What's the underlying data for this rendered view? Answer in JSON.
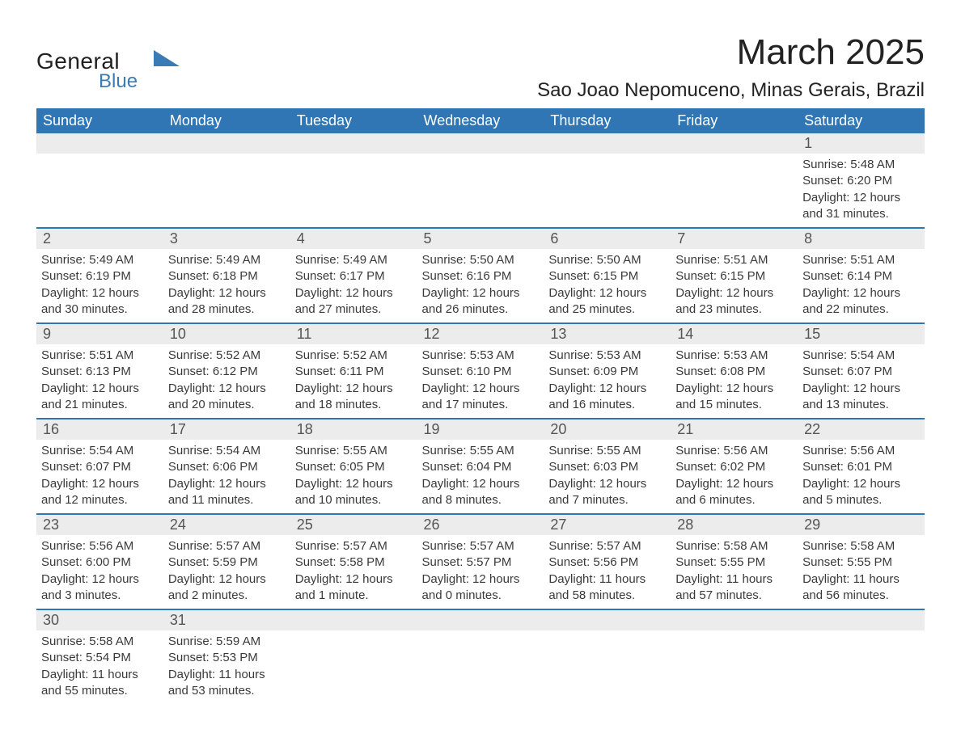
{
  "logo": {
    "main": "General",
    "sub": "Blue"
  },
  "title": "March 2025",
  "location": "Sao Joao Nepomuceno, Minas Gerais, Brazil",
  "day_headers": [
    "Sunday",
    "Monday",
    "Tuesday",
    "Wednesday",
    "Thursday",
    "Friday",
    "Saturday"
  ],
  "colors": {
    "header_bg": "#3076b5",
    "header_text": "#ffffff",
    "day_num_bg": "#ececec",
    "day_num_text": "#555555",
    "body_text": "#3a3a3a",
    "row_border": "#3076b5",
    "logo_accent": "#3b7bb5"
  },
  "typography": {
    "month_title_fontsize": 44,
    "location_fontsize": 24,
    "day_header_fontsize": 18,
    "day_num_fontsize": 18,
    "cell_fontsize": 15
  },
  "weeks": [
    [
      null,
      null,
      null,
      null,
      null,
      null,
      {
        "num": "1",
        "sunrise": "Sunrise: 5:48 AM",
        "sunset": "Sunset: 6:20 PM",
        "daylight1": "Daylight: 12 hours",
        "daylight2": "and 31 minutes."
      }
    ],
    [
      {
        "num": "2",
        "sunrise": "Sunrise: 5:49 AM",
        "sunset": "Sunset: 6:19 PM",
        "daylight1": "Daylight: 12 hours",
        "daylight2": "and 30 minutes."
      },
      {
        "num": "3",
        "sunrise": "Sunrise: 5:49 AM",
        "sunset": "Sunset: 6:18 PM",
        "daylight1": "Daylight: 12 hours",
        "daylight2": "and 28 minutes."
      },
      {
        "num": "4",
        "sunrise": "Sunrise: 5:49 AM",
        "sunset": "Sunset: 6:17 PM",
        "daylight1": "Daylight: 12 hours",
        "daylight2": "and 27 minutes."
      },
      {
        "num": "5",
        "sunrise": "Sunrise: 5:50 AM",
        "sunset": "Sunset: 6:16 PM",
        "daylight1": "Daylight: 12 hours",
        "daylight2": "and 26 minutes."
      },
      {
        "num": "6",
        "sunrise": "Sunrise: 5:50 AM",
        "sunset": "Sunset: 6:15 PM",
        "daylight1": "Daylight: 12 hours",
        "daylight2": "and 25 minutes."
      },
      {
        "num": "7",
        "sunrise": "Sunrise: 5:51 AM",
        "sunset": "Sunset: 6:15 PM",
        "daylight1": "Daylight: 12 hours",
        "daylight2": "and 23 minutes."
      },
      {
        "num": "8",
        "sunrise": "Sunrise: 5:51 AM",
        "sunset": "Sunset: 6:14 PM",
        "daylight1": "Daylight: 12 hours",
        "daylight2": "and 22 minutes."
      }
    ],
    [
      {
        "num": "9",
        "sunrise": "Sunrise: 5:51 AM",
        "sunset": "Sunset: 6:13 PM",
        "daylight1": "Daylight: 12 hours",
        "daylight2": "and 21 minutes."
      },
      {
        "num": "10",
        "sunrise": "Sunrise: 5:52 AM",
        "sunset": "Sunset: 6:12 PM",
        "daylight1": "Daylight: 12 hours",
        "daylight2": "and 20 minutes."
      },
      {
        "num": "11",
        "sunrise": "Sunrise: 5:52 AM",
        "sunset": "Sunset: 6:11 PM",
        "daylight1": "Daylight: 12 hours",
        "daylight2": "and 18 minutes."
      },
      {
        "num": "12",
        "sunrise": "Sunrise: 5:53 AM",
        "sunset": "Sunset: 6:10 PM",
        "daylight1": "Daylight: 12 hours",
        "daylight2": "and 17 minutes."
      },
      {
        "num": "13",
        "sunrise": "Sunrise: 5:53 AM",
        "sunset": "Sunset: 6:09 PM",
        "daylight1": "Daylight: 12 hours",
        "daylight2": "and 16 minutes."
      },
      {
        "num": "14",
        "sunrise": "Sunrise: 5:53 AM",
        "sunset": "Sunset: 6:08 PM",
        "daylight1": "Daylight: 12 hours",
        "daylight2": "and 15 minutes."
      },
      {
        "num": "15",
        "sunrise": "Sunrise: 5:54 AM",
        "sunset": "Sunset: 6:07 PM",
        "daylight1": "Daylight: 12 hours",
        "daylight2": "and 13 minutes."
      }
    ],
    [
      {
        "num": "16",
        "sunrise": "Sunrise: 5:54 AM",
        "sunset": "Sunset: 6:07 PM",
        "daylight1": "Daylight: 12 hours",
        "daylight2": "and 12 minutes."
      },
      {
        "num": "17",
        "sunrise": "Sunrise: 5:54 AM",
        "sunset": "Sunset: 6:06 PM",
        "daylight1": "Daylight: 12 hours",
        "daylight2": "and 11 minutes."
      },
      {
        "num": "18",
        "sunrise": "Sunrise: 5:55 AM",
        "sunset": "Sunset: 6:05 PM",
        "daylight1": "Daylight: 12 hours",
        "daylight2": "and 10 minutes."
      },
      {
        "num": "19",
        "sunrise": "Sunrise: 5:55 AM",
        "sunset": "Sunset: 6:04 PM",
        "daylight1": "Daylight: 12 hours",
        "daylight2": "and 8 minutes."
      },
      {
        "num": "20",
        "sunrise": "Sunrise: 5:55 AM",
        "sunset": "Sunset: 6:03 PM",
        "daylight1": "Daylight: 12 hours",
        "daylight2": "and 7 minutes."
      },
      {
        "num": "21",
        "sunrise": "Sunrise: 5:56 AM",
        "sunset": "Sunset: 6:02 PM",
        "daylight1": "Daylight: 12 hours",
        "daylight2": "and 6 minutes."
      },
      {
        "num": "22",
        "sunrise": "Sunrise: 5:56 AM",
        "sunset": "Sunset: 6:01 PM",
        "daylight1": "Daylight: 12 hours",
        "daylight2": "and 5 minutes."
      }
    ],
    [
      {
        "num": "23",
        "sunrise": "Sunrise: 5:56 AM",
        "sunset": "Sunset: 6:00 PM",
        "daylight1": "Daylight: 12 hours",
        "daylight2": "and 3 minutes."
      },
      {
        "num": "24",
        "sunrise": "Sunrise: 5:57 AM",
        "sunset": "Sunset: 5:59 PM",
        "daylight1": "Daylight: 12 hours",
        "daylight2": "and 2 minutes."
      },
      {
        "num": "25",
        "sunrise": "Sunrise: 5:57 AM",
        "sunset": "Sunset: 5:58 PM",
        "daylight1": "Daylight: 12 hours",
        "daylight2": "and 1 minute."
      },
      {
        "num": "26",
        "sunrise": "Sunrise: 5:57 AM",
        "sunset": "Sunset: 5:57 PM",
        "daylight1": "Daylight: 12 hours",
        "daylight2": "and 0 minutes."
      },
      {
        "num": "27",
        "sunrise": "Sunrise: 5:57 AM",
        "sunset": "Sunset: 5:56 PM",
        "daylight1": "Daylight: 11 hours",
        "daylight2": "and 58 minutes."
      },
      {
        "num": "28",
        "sunrise": "Sunrise: 5:58 AM",
        "sunset": "Sunset: 5:55 PM",
        "daylight1": "Daylight: 11 hours",
        "daylight2": "and 57 minutes."
      },
      {
        "num": "29",
        "sunrise": "Sunrise: 5:58 AM",
        "sunset": "Sunset: 5:55 PM",
        "daylight1": "Daylight: 11 hours",
        "daylight2": "and 56 minutes."
      }
    ],
    [
      {
        "num": "30",
        "sunrise": "Sunrise: 5:58 AM",
        "sunset": "Sunset: 5:54 PM",
        "daylight1": "Daylight: 11 hours",
        "daylight2": "and 55 minutes."
      },
      {
        "num": "31",
        "sunrise": "Sunrise: 5:59 AM",
        "sunset": "Sunset: 5:53 PM",
        "daylight1": "Daylight: 11 hours",
        "daylight2": "and 53 minutes."
      },
      null,
      null,
      null,
      null,
      null
    ]
  ]
}
